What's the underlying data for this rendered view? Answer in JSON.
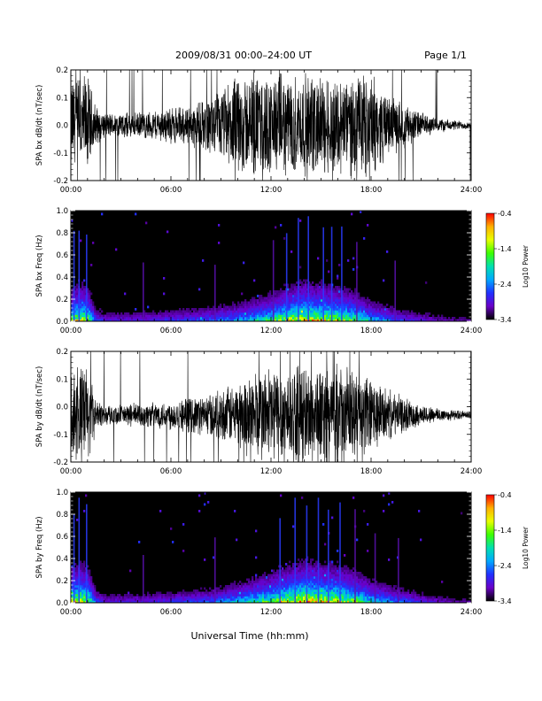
{
  "header": {
    "title": "2009/08/31   00:00–24:00 UT",
    "page": "Page 1/1"
  },
  "footer": {
    "xlabel": "Universal Time (hh:mm)"
  },
  "colorbar": {
    "ticks": [
      "-0.4",
      "-1.4",
      "-2.4",
      "-3.4"
    ],
    "label": "Log10 Power",
    "stops": [
      "#ff0000",
      "#ffb000",
      "#e8ff00",
      "#3cff00",
      "#00e0b0",
      "#00a8ff",
      "#2030ff",
      "#6a00c8",
      "#000000"
    ]
  },
  "chart_data": [
    {
      "type": "line",
      "ylabel": "SPA bx dB/dt (nT/sec)",
      "x_unit": "hours UT",
      "xlim": [
        0,
        24
      ],
      "ylim": [
        -0.2,
        0.2
      ],
      "xticks": [
        "00:00",
        "06:00",
        "12:00",
        "18:00",
        "24:00"
      ],
      "yticks": [
        "-0.2",
        "-0.1",
        "0.0",
        "0.1",
        "0.2"
      ],
      "envelope": {
        "x": [
          0,
          0.5,
          1.0,
          1.5,
          2,
          3,
          4,
          5,
          6,
          7,
          8,
          9,
          10,
          11,
          12,
          13,
          14,
          15,
          16,
          17,
          18,
          19,
          20,
          21,
          22,
          23,
          24
        ],
        "amp": [
          0.2,
          0.2,
          0.2,
          0.08,
          0.05,
          0.05,
          0.05,
          0.06,
          0.07,
          0.08,
          0.1,
          0.14,
          0.2,
          0.2,
          0.2,
          0.2,
          0.2,
          0.2,
          0.2,
          0.2,
          0.2,
          0.12,
          0.09,
          0.05,
          0.03,
          0.02,
          0.015
        ]
      },
      "offset": 0.0
    },
    {
      "type": "heatmap",
      "ylabel": "SPA bx Freq (Hz)",
      "xlim": [
        0,
        24
      ],
      "ylim": [
        0,
        1.0
      ],
      "zlim": [
        -3.4,
        -0.4
      ],
      "xticks": [
        "00:00",
        "06:00",
        "12:00",
        "18:00",
        "24:00"
      ],
      "yticks": [
        "0.0",
        "0.2",
        "0.4",
        "0.6",
        "0.8",
        "1.0"
      ],
      "activity": {
        "x": [
          0,
          0.5,
          1,
          1.5,
          2,
          4,
          6,
          8,
          9,
          10,
          11,
          12,
          13,
          14,
          15,
          16,
          17,
          18,
          19,
          20,
          21,
          22,
          23,
          24
        ],
        "level": [
          0.7,
          0.8,
          0.75,
          0.3,
          0.2,
          0.2,
          0.25,
          0.3,
          0.35,
          0.4,
          0.5,
          0.6,
          0.75,
          0.85,
          0.8,
          0.75,
          0.65,
          0.45,
          0.35,
          0.25,
          0.2,
          0.15,
          0.12,
          0.1
        ]
      },
      "streaks_hours": [
        0.15,
        0.45,
        0.9,
        4.3,
        8.6,
        12.1,
        12.9,
        13.6,
        14.2,
        15.1,
        15.6,
        16.2,
        17.1,
        19.4
      ]
    },
    {
      "type": "line",
      "ylabel": "SPA by dB/dt (nT/sec)",
      "x_unit": "hours UT",
      "xlim": [
        0,
        24
      ],
      "ylim": [
        -0.2,
        0.2
      ],
      "xticks": [
        "00:00",
        "06:00",
        "12:00",
        "18:00",
        "24:00"
      ],
      "yticks": [
        "-0.2",
        "-0.1",
        "0.0",
        "0.1",
        "0.2"
      ],
      "envelope": {
        "x": [
          0,
          0.5,
          1.0,
          1.5,
          2,
          3,
          4,
          5,
          6,
          7,
          8,
          9,
          10,
          11,
          12,
          13,
          14,
          15,
          16,
          17,
          18,
          19,
          20,
          21,
          22,
          23,
          24
        ],
        "amp": [
          0.2,
          0.2,
          0.2,
          0.06,
          0.04,
          0.04,
          0.05,
          0.05,
          0.06,
          0.07,
          0.08,
          0.1,
          0.13,
          0.18,
          0.2,
          0.2,
          0.2,
          0.2,
          0.2,
          0.18,
          0.15,
          0.1,
          0.07,
          0.04,
          0.03,
          0.02,
          0.015
        ]
      },
      "offset": -0.03
    },
    {
      "type": "heatmap",
      "ylabel": "SPA by Freq (Hz)",
      "xlim": [
        0,
        24
      ],
      "ylim": [
        0,
        1.0
      ],
      "zlim": [
        -3.4,
        -0.4
      ],
      "xticks": [
        "00:00",
        "06:00",
        "12:00",
        "18:00",
        "24:00"
      ],
      "yticks": [
        "0.0",
        "0.2",
        "0.4",
        "0.6",
        "0.8",
        "1.0"
      ],
      "activity": {
        "x": [
          0,
          0.5,
          1,
          1.5,
          2,
          4,
          6,
          8,
          9,
          10,
          11,
          12,
          13,
          14,
          15,
          16,
          17,
          18,
          19,
          20,
          21,
          22,
          23,
          24
        ],
        "level": [
          0.75,
          0.85,
          0.8,
          0.3,
          0.2,
          0.2,
          0.25,
          0.3,
          0.35,
          0.45,
          0.55,
          0.65,
          0.8,
          0.9,
          0.85,
          0.8,
          0.7,
          0.5,
          0.4,
          0.3,
          0.22,
          0.16,
          0.12,
          0.1
        ]
      },
      "streaks_hours": [
        0.15,
        0.45,
        0.9,
        4.3,
        8.6,
        12.5,
        13.4,
        14.1,
        14.8,
        15.4,
        16.1,
        17.0,
        18.2,
        19.6
      ]
    }
  ]
}
